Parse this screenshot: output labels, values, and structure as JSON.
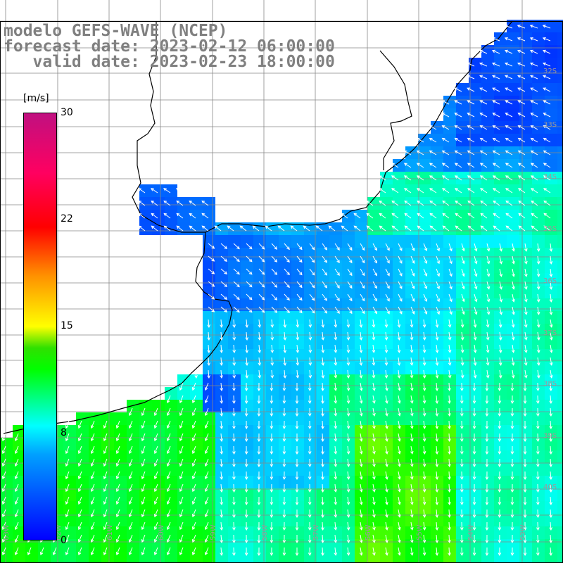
{
  "header": {
    "line1": "modelo GEFS-WAVE (NCEP)",
    "line2": "forecast date: 2023-02-12 06:00:00",
    "line3": "   valid date: 2023-02-23 18:00:00"
  },
  "colorbar": {
    "unit": "[m/s]",
    "ticks": [
      "30",
      "22",
      "15",
      "8",
      "0"
    ],
    "colors": [
      "#0000ff",
      "#00a0ff",
      "#00ffff",
      "#00ff00",
      "#ffff00",
      "#ff9000",
      "#ff0000",
      "#c01080"
    ]
  },
  "map": {
    "lat_labels": [
      "32S",
      "33S",
      "34S",
      "35S",
      "36S",
      "37S",
      "38S",
      "39S",
      "40S"
    ],
    "lon_labels": [
      "63W",
      "62W",
      "61W",
      "60W",
      "59W",
      "58W",
      "57W",
      "56W",
      "55W",
      "54W",
      "53W"
    ],
    "field": "wind speed with direction arrows",
    "coast_color": "#000000",
    "grid_color": "#808080",
    "arrow_color": "#ffffff"
  }
}
